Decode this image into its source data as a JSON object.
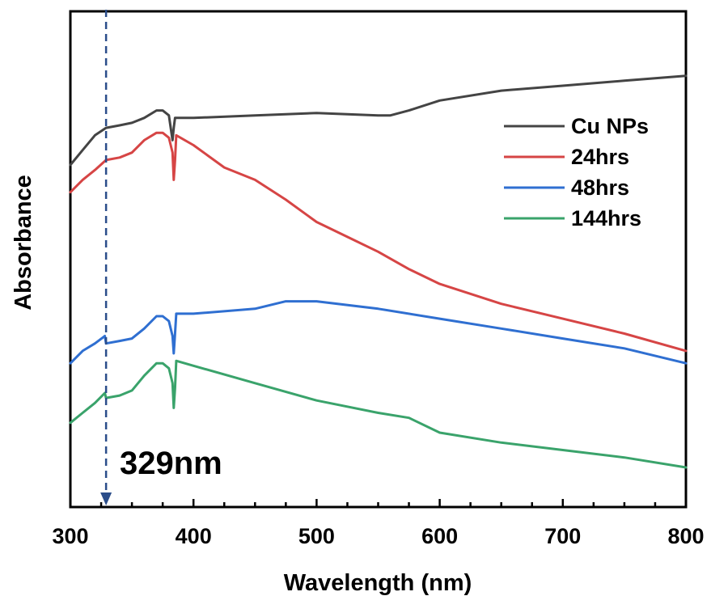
{
  "chart_data": {
    "type": "line",
    "xlabel": "Wavelength (nm)",
    "ylabel": "Absorbance",
    "xlim": [
      300,
      800
    ],
    "ylim": [
      0,
      1
    ],
    "x_ticks": [
      300,
      400,
      500,
      600,
      700,
      800
    ],
    "x_tick_labels": [
      "300",
      "400",
      "500",
      "600",
      "700",
      "800"
    ],
    "y_ticks_shown": false,
    "grid": false,
    "legend_position": "top-right",
    "annotation": {
      "text": "329nm",
      "x": 329,
      "style": "dashed vertical arrow pointing down",
      "color": "#2b4d8a"
    },
    "series": [
      {
        "name": "Cu NPs",
        "color": "#444444",
        "x": [
          300,
          310,
          320,
          329,
          340,
          350,
          360,
          370,
          375,
          380,
          383,
          384,
          385,
          386,
          400,
          450,
          500,
          550,
          560,
          575,
          600,
          650,
          700,
          750,
          800
        ],
        "y": [
          0.69,
          0.72,
          0.75,
          0.765,
          0.77,
          0.775,
          0.785,
          0.8,
          0.8,
          0.79,
          0.74,
          0.765,
          0.785,
          0.785,
          0.785,
          0.79,
          0.795,
          0.79,
          0.79,
          0.8,
          0.82,
          0.84,
          0.85,
          0.86,
          0.87
        ]
      },
      {
        "name": "24hrs",
        "color": "#d64545",
        "x": [
          300,
          310,
          320,
          329,
          340,
          350,
          360,
          370,
          375,
          380,
          383,
          384,
          385,
          386,
          400,
          425,
          450,
          475,
          500,
          525,
          550,
          575,
          600,
          650,
          700,
          750,
          800
        ],
        "y": [
          0.635,
          0.66,
          0.68,
          0.7,
          0.705,
          0.715,
          0.74,
          0.755,
          0.755,
          0.745,
          0.715,
          0.66,
          0.7,
          0.75,
          0.73,
          0.685,
          0.66,
          0.62,
          0.575,
          0.545,
          0.515,
          0.48,
          0.45,
          0.41,
          0.38,
          0.35,
          0.315
        ]
      },
      {
        "name": "48hrs",
        "color": "#2f6fd1",
        "x": [
          300,
          310,
          320,
          328,
          329,
          340,
          350,
          360,
          370,
          375,
          380,
          383,
          384,
          385,
          386,
          400,
          450,
          475,
          500,
          550,
          600,
          650,
          700,
          750,
          800
        ],
        "y": [
          0.29,
          0.315,
          0.33,
          0.345,
          0.33,
          0.335,
          0.34,
          0.36,
          0.385,
          0.385,
          0.375,
          0.345,
          0.31,
          0.35,
          0.39,
          0.39,
          0.4,
          0.415,
          0.415,
          0.4,
          0.38,
          0.36,
          0.34,
          0.32,
          0.29
        ]
      },
      {
        "name": "144hrs",
        "color": "#3aa36b",
        "x": [
          300,
          310,
          320,
          328,
          329,
          340,
          350,
          360,
          370,
          375,
          380,
          383,
          384,
          385,
          386,
          400,
          450,
          500,
          550,
          575,
          600,
          650,
          700,
          750,
          800
        ],
        "y": [
          0.17,
          0.19,
          0.21,
          0.23,
          0.22,
          0.225,
          0.235,
          0.265,
          0.29,
          0.29,
          0.28,
          0.25,
          0.2,
          0.24,
          0.295,
          0.285,
          0.25,
          0.215,
          0.19,
          0.18,
          0.15,
          0.13,
          0.115,
          0.1,
          0.08
        ]
      }
    ]
  }
}
